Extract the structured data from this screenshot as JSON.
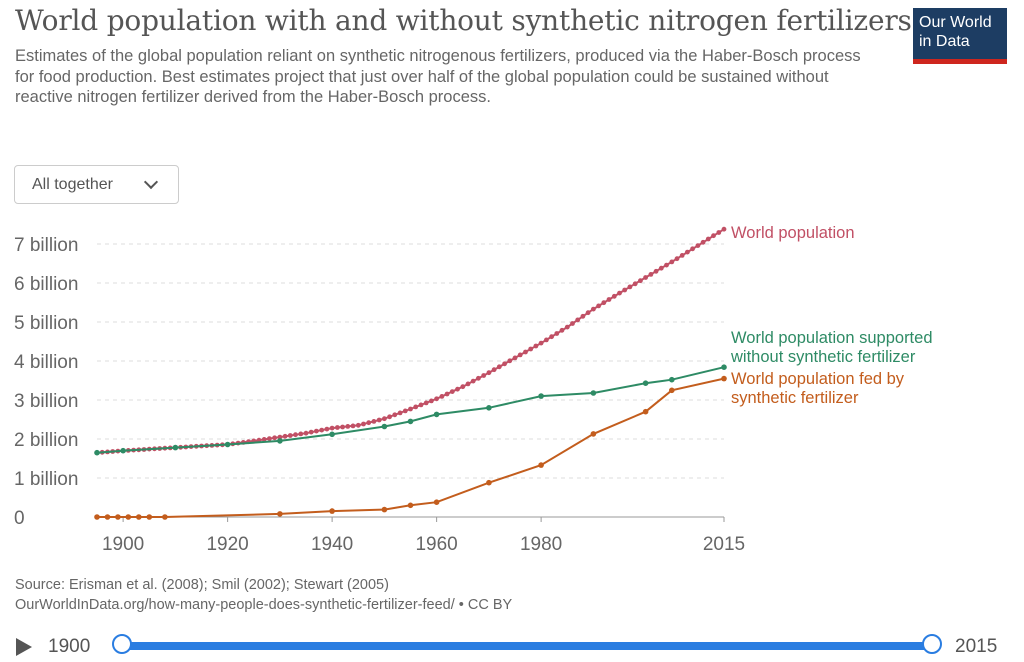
{
  "header": {
    "title": "World population with and without synthetic nitrogen fertilizers",
    "subtitle": "Estimates of the global population reliant on synthetic nitrogenous fertilizers, produced via the Haber-Bosch process for food production. Best estimates project that just over half of the global population could be sustained without reactive nitrogen fertilizer derived from the Haber-Bosch process."
  },
  "logo": {
    "line1": "Our World",
    "line2": "in Data"
  },
  "controls": {
    "dropdown_label": "All together"
  },
  "chart_data": {
    "type": "line",
    "title": "World population with and without synthetic nitrogen fertilizers",
    "xlabel": "",
    "ylabel": "",
    "xlim": [
      1895,
      2015
    ],
    "ylim": [
      0,
      7.3
    ],
    "x_ticks": [
      1900,
      1920,
      1940,
      1960,
      1980,
      2015
    ],
    "y_ticks": [
      0,
      1,
      2,
      3,
      4,
      5,
      6,
      7
    ],
    "y_tick_labels": [
      "0",
      "1 billion",
      "2 billion",
      "3 billion",
      "4 billion",
      "5 billion",
      "6 billion",
      "7 billion"
    ],
    "grid": "horizontal dashed",
    "legend": "inline labels at line ends",
    "series": [
      {
        "name": "World population",
        "color": "#c15065",
        "dense_markers": true,
        "points": [
          [
            1895,
            1.65
          ],
          [
            1900,
            1.7
          ],
          [
            1905,
            1.74
          ],
          [
            1910,
            1.78
          ],
          [
            1915,
            1.82
          ],
          [
            1920,
            1.86
          ],
          [
            1925,
            1.95
          ],
          [
            1930,
            2.05
          ],
          [
            1935,
            2.15
          ],
          [
            1940,
            2.28
          ],
          [
            1945,
            2.35
          ],
          [
            1950,
            2.52
          ],
          [
            1955,
            2.77
          ],
          [
            1960,
            3.03
          ],
          [
            1965,
            3.34
          ],
          [
            1970,
            3.7
          ],
          [
            1975,
            4.08
          ],
          [
            1980,
            4.46
          ],
          [
            1985,
            4.87
          ],
          [
            1990,
            5.33
          ],
          [
            1995,
            5.74
          ],
          [
            2000,
            6.14
          ],
          [
            2005,
            6.54
          ],
          [
            2010,
            6.96
          ],
          [
            2015,
            7.38
          ]
        ],
        "label_lines": [
          "World population"
        ]
      },
      {
        "name": "World population supported without synthetic fertilizer",
        "color": "#2e8b65",
        "dense_markers": false,
        "points": [
          [
            1895,
            1.65
          ],
          [
            1900,
            1.7
          ],
          [
            1910,
            1.78
          ],
          [
            1920,
            1.86
          ],
          [
            1930,
            1.95
          ],
          [
            1940,
            2.12
          ],
          [
            1950,
            2.32
          ],
          [
            1955,
            2.45
          ],
          [
            1960,
            2.63
          ],
          [
            1970,
            2.8
          ],
          [
            1980,
            3.1
          ],
          [
            1990,
            3.18
          ],
          [
            2000,
            3.43
          ],
          [
            2005,
            3.52
          ],
          [
            2015,
            3.84
          ]
        ],
        "label_lines": [
          "World population supported",
          "without synthetic fertilizer"
        ]
      },
      {
        "name": "World population fed by synthetic fertilizer",
        "color": "#c35d1d",
        "dense_markers": false,
        "points": [
          [
            1895,
            0
          ],
          [
            1897,
            0
          ],
          [
            1899,
            0
          ],
          [
            1901,
            0
          ],
          [
            1903,
            0
          ],
          [
            1905,
            0
          ],
          [
            1908,
            0
          ],
          [
            1930,
            0.08
          ],
          [
            1940,
            0.15
          ],
          [
            1950,
            0.19
          ],
          [
            1955,
            0.3
          ],
          [
            1960,
            0.38
          ],
          [
            1970,
            0.88
          ],
          [
            1980,
            1.33
          ],
          [
            1990,
            2.13
          ],
          [
            2000,
            2.7
          ],
          [
            2005,
            3.25
          ],
          [
            2015,
            3.55
          ]
        ],
        "label_lines": [
          "World population fed by",
          "synthetic fertilizer"
        ]
      }
    ]
  },
  "source": {
    "line1": "Source: Erisman et al. (2008); Smil (2002); Stewart (2005)",
    "line2": "OurWorldInData.org/how-many-people-does-synthetic-fertilizer-feed/ • CC BY"
  },
  "timeline": {
    "start": "1900",
    "end": "2015",
    "start_fraction": 0,
    "end_fraction": 1
  }
}
